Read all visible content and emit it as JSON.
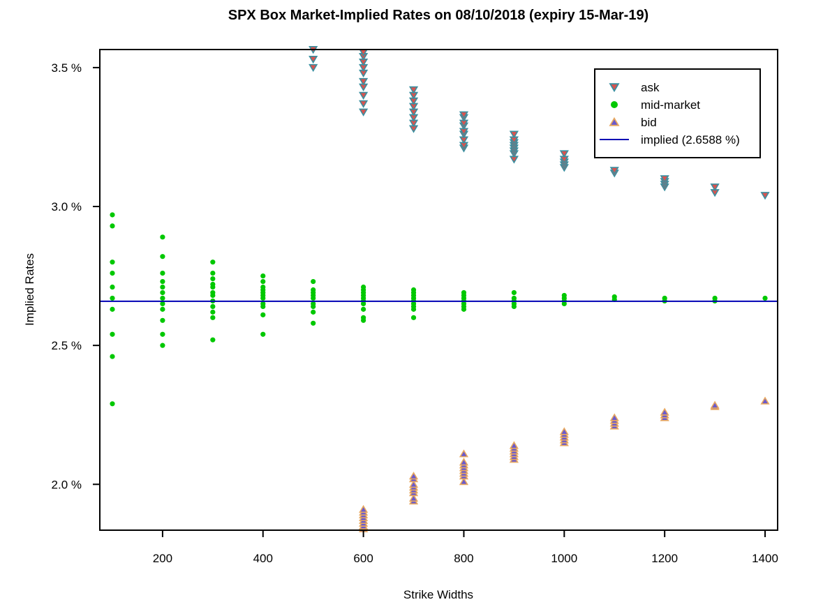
{
  "chart_data": {
    "type": "scatter",
    "title": "SPX Box Market-Implied Rates on 08/10/2018   (expiry 15-Mar-19)",
    "xlabel": "Strike Widths",
    "ylabel": "Implied Rates",
    "xlim": [
      75,
      1425
    ],
    "ylim": [
      1.835,
      3.565
    ],
    "x_ticks": [
      200,
      400,
      600,
      800,
      1000,
      1200,
      1400
    ],
    "y_ticks": [
      2.0,
      2.5,
      3.0,
      3.5
    ],
    "y_tick_labels": [
      "2.0 %",
      "2.5 %",
      "3.0 %",
      "3.5 %"
    ],
    "legend": {
      "position": "top-right",
      "entries": [
        {
          "label": "ask",
          "symbol": "triangle-down",
          "fill": "#d9534f",
          "stroke": "#3a8fa0"
        },
        {
          "label": "mid-market",
          "symbol": "circle",
          "fill": "#00c800",
          "stroke": "#00c800"
        },
        {
          "label": "bid",
          "symbol": "triangle-up",
          "fill": "#6a5acd",
          "stroke": "#e8a860"
        },
        {
          "label": "implied (2.6588 %)",
          "symbol": "line",
          "fill": "#0000b4",
          "stroke": "#0000b4"
        }
      ]
    },
    "implied_rate": 2.6588,
    "series": [
      {
        "name": "ask",
        "points": [
          [
            500,
            3.5
          ],
          [
            500,
            3.53
          ],
          [
            500,
            3.565
          ],
          [
            600,
            3.34
          ],
          [
            600,
            3.37
          ],
          [
            600,
            3.4
          ],
          [
            600,
            3.43
          ],
          [
            600,
            3.45
          ],
          [
            600,
            3.48
          ],
          [
            600,
            3.5
          ],
          [
            600,
            3.52
          ],
          [
            600,
            3.54
          ],
          [
            600,
            3.555
          ],
          [
            700,
            3.28
          ],
          [
            700,
            3.3
          ],
          [
            700,
            3.32
          ],
          [
            700,
            3.34
          ],
          [
            700,
            3.36
          ],
          [
            700,
            3.38
          ],
          [
            700,
            3.4
          ],
          [
            700,
            3.42
          ],
          [
            800,
            3.21
          ],
          [
            800,
            3.22
          ],
          [
            800,
            3.24
          ],
          [
            800,
            3.26
          ],
          [
            800,
            3.27
          ],
          [
            800,
            3.29
          ],
          [
            800,
            3.3
          ],
          [
            800,
            3.32
          ],
          [
            800,
            3.33
          ],
          [
            900,
            3.17
          ],
          [
            900,
            3.19
          ],
          [
            900,
            3.2
          ],
          [
            900,
            3.21
          ],
          [
            900,
            3.22
          ],
          [
            900,
            3.23
          ],
          [
            900,
            3.24
          ],
          [
            900,
            3.26
          ],
          [
            1000,
            3.14
          ],
          [
            1000,
            3.15
          ],
          [
            1000,
            3.16
          ],
          [
            1000,
            3.17
          ],
          [
            1000,
            3.19
          ],
          [
            1100,
            3.12
          ],
          [
            1100,
            3.13
          ],
          [
            1200,
            3.07
          ],
          [
            1200,
            3.08
          ],
          [
            1200,
            3.09
          ],
          [
            1200,
            3.1
          ],
          [
            1300,
            3.05
          ],
          [
            1300,
            3.07
          ],
          [
            1400,
            3.04
          ]
        ]
      },
      {
        "name": "mid-market",
        "points": [
          [
            100,
            2.29
          ],
          [
            100,
            2.46
          ],
          [
            100,
            2.54
          ],
          [
            100,
            2.63
          ],
          [
            100,
            2.67
          ],
          [
            100,
            2.71
          ],
          [
            100,
            2.76
          ],
          [
            100,
            2.8
          ],
          [
            100,
            2.93
          ],
          [
            100,
            2.97
          ],
          [
            200,
            2.5
          ],
          [
            200,
            2.54
          ],
          [
            200,
            2.59
          ],
          [
            200,
            2.63
          ],
          [
            200,
            2.65
          ],
          [
            200,
            2.67
          ],
          [
            200,
            2.69
          ],
          [
            200,
            2.71
          ],
          [
            200,
            2.73
          ],
          [
            200,
            2.76
          ],
          [
            200,
            2.82
          ],
          [
            200,
            2.89
          ],
          [
            300,
            2.52
          ],
          [
            300,
            2.6
          ],
          [
            300,
            2.62
          ],
          [
            300,
            2.64
          ],
          [
            300,
            2.66
          ],
          [
            300,
            2.68
          ],
          [
            300,
            2.69
          ],
          [
            300,
            2.71
          ],
          [
            300,
            2.72
          ],
          [
            300,
            2.74
          ],
          [
            300,
            2.76
          ],
          [
            300,
            2.8
          ],
          [
            400,
            2.54
          ],
          [
            400,
            2.61
          ],
          [
            400,
            2.64
          ],
          [
            400,
            2.65
          ],
          [
            400,
            2.67
          ],
          [
            400,
            2.68
          ],
          [
            400,
            2.69
          ],
          [
            400,
            2.7
          ],
          [
            400,
            2.71
          ],
          [
            400,
            2.73
          ],
          [
            400,
            2.75
          ],
          [
            500,
            2.58
          ],
          [
            500,
            2.62
          ],
          [
            500,
            2.64
          ],
          [
            500,
            2.65
          ],
          [
            500,
            2.67
          ],
          [
            500,
            2.68
          ],
          [
            500,
            2.69
          ],
          [
            500,
            2.7
          ],
          [
            500,
            2.73
          ],
          [
            600,
            2.59
          ],
          [
            600,
            2.6
          ],
          [
            600,
            2.63
          ],
          [
            600,
            2.65
          ],
          [
            600,
            2.66
          ],
          [
            600,
            2.67
          ],
          [
            600,
            2.68
          ],
          [
            600,
            2.69
          ],
          [
            600,
            2.7
          ],
          [
            600,
            2.71
          ],
          [
            700,
            2.6
          ],
          [
            700,
            2.63
          ],
          [
            700,
            2.64
          ],
          [
            700,
            2.65
          ],
          [
            700,
            2.66
          ],
          [
            700,
            2.67
          ],
          [
            700,
            2.68
          ],
          [
            700,
            2.69
          ],
          [
            700,
            2.7
          ],
          [
            800,
            2.63
          ],
          [
            800,
            2.64
          ],
          [
            800,
            2.65
          ],
          [
            800,
            2.66
          ],
          [
            800,
            2.67
          ],
          [
            800,
            2.68
          ],
          [
            800,
            2.69
          ],
          [
            900,
            2.64
          ],
          [
            900,
            2.65
          ],
          [
            900,
            2.66
          ],
          [
            900,
            2.67
          ],
          [
            900,
            2.69
          ],
          [
            1000,
            2.65
          ],
          [
            1000,
            2.66
          ],
          [
            1000,
            2.67
          ],
          [
            1000,
            2.68
          ],
          [
            1100,
            2.665
          ],
          [
            1100,
            2.675
          ],
          [
            1200,
            2.66
          ],
          [
            1200,
            2.67
          ],
          [
            1300,
            2.66
          ],
          [
            1300,
            2.67
          ],
          [
            1400,
            2.67
          ]
        ]
      },
      {
        "name": "bid",
        "points": [
          [
            600,
            1.84
          ],
          [
            600,
            1.85
          ],
          [
            600,
            1.86
          ],
          [
            600,
            1.87
          ],
          [
            600,
            1.88
          ],
          [
            600,
            1.89
          ],
          [
            600,
            1.9
          ],
          [
            600,
            1.91
          ],
          [
            700,
            1.94
          ],
          [
            700,
            1.95
          ],
          [
            700,
            1.97
          ],
          [
            700,
            1.98
          ],
          [
            700,
            1.99
          ],
          [
            700,
            2.0
          ],
          [
            700,
            2.02
          ],
          [
            700,
            2.03
          ],
          [
            800,
            2.01
          ],
          [
            800,
            2.03
          ],
          [
            800,
            2.04
          ],
          [
            800,
            2.05
          ],
          [
            800,
            2.06
          ],
          [
            800,
            2.07
          ],
          [
            800,
            2.08
          ],
          [
            800,
            2.11
          ],
          [
            900,
            2.09
          ],
          [
            900,
            2.1
          ],
          [
            900,
            2.11
          ],
          [
            900,
            2.12
          ],
          [
            900,
            2.13
          ],
          [
            900,
            2.14
          ],
          [
            1000,
            2.15
          ],
          [
            1000,
            2.16
          ],
          [
            1000,
            2.17
          ],
          [
            1000,
            2.18
          ],
          [
            1000,
            2.19
          ],
          [
            1100,
            2.21
          ],
          [
            1100,
            2.22
          ],
          [
            1100,
            2.23
          ],
          [
            1100,
            2.24
          ],
          [
            1200,
            2.24
          ],
          [
            1200,
            2.25
          ],
          [
            1200,
            2.26
          ],
          [
            1300,
            2.28
          ],
          [
            1300,
            2.285
          ],
          [
            1400,
            2.3
          ]
        ]
      }
    ]
  }
}
